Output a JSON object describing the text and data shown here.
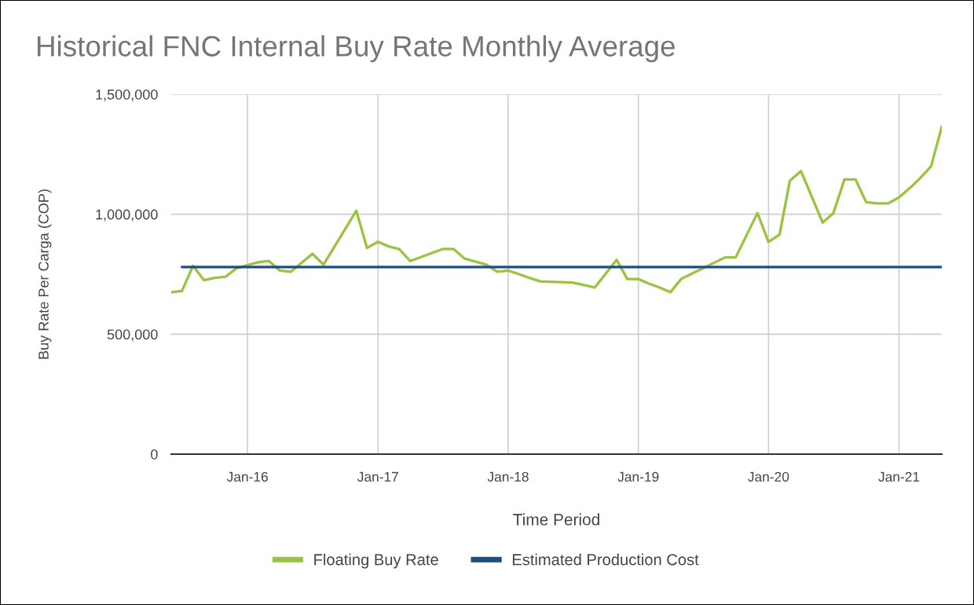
{
  "chart_data": {
    "type": "line",
    "title": "Historical FNC Internal Buy Rate Monthly Average",
    "xlabel": "Time Period",
    "ylabel": "Buy Rate Per Carga (COP)",
    "xlim": [
      "2015-06",
      "2021-05"
    ],
    "xticks": [
      {
        "value": "2016-01",
        "label": "Jan-16"
      },
      {
        "value": "2017-01",
        "label": "Jan-17"
      },
      {
        "value": "2018-01",
        "label": "Jan-18"
      },
      {
        "value": "2019-01",
        "label": "Jan-19"
      },
      {
        "value": "2020-01",
        "label": "Jan-20"
      },
      {
        "value": "2021-01",
        "label": "Jan-21"
      }
    ],
    "ylim": [
      0,
      1500000
    ],
    "yticks": [
      0,
      {
        "value": 500000,
        "label": "500,000"
      },
      {
        "value": 1000000,
        "label": "1,000,000"
      },
      {
        "value": 1500000,
        "label": "1,500,000"
      }
    ],
    "grid": true,
    "legend": "bottom",
    "series": [
      {
        "name": "Floating Buy Rate",
        "color": "#9ac43f",
        "x": [
          "2015-06",
          "2015-07",
          "2015-08",
          "2015-09",
          "2015-10",
          "2015-11",
          "2015-12",
          "2016-02",
          "2016-03",
          "2016-04",
          "2016-05",
          "2016-07",
          "2016-08",
          "2016-11",
          "2016-12",
          "2017-01",
          "2017-02",
          "2017-03",
          "2017-04",
          "2017-07",
          "2017-08",
          "2017-09",
          "2017-11",
          "2017-12",
          "2018-01",
          "2018-02",
          "2018-03",
          "2018-04",
          "2018-07",
          "2018-09",
          "2018-11",
          "2018-12",
          "2019-01",
          "2019-02",
          "2019-03",
          "2019-04",
          "2019-05",
          "2019-09",
          "2019-10",
          "2019-12",
          "2020-01",
          "2020-02",
          "2020-03",
          "2020-04",
          "2020-06",
          "2020-07",
          "2020-08",
          "2020-09",
          "2020-10",
          "2020-11",
          "2020-12",
          "2021-01",
          "2021-02",
          "2021-03",
          "2021-04",
          "2021-05"
        ],
        "values": [
          675000,
          680000,
          785000,
          725000,
          735000,
          740000,
          775000,
          800000,
          805000,
          765000,
          760000,
          835000,
          790000,
          1015000,
          860000,
          885000,
          865000,
          855000,
          805000,
          855000,
          855000,
          815000,
          790000,
          760000,
          765000,
          750000,
          735000,
          720000,
          715000,
          695000,
          810000,
          730000,
          730000,
          710000,
          695000,
          675000,
          730000,
          820000,
          820000,
          1005000,
          885000,
          915000,
          1140000,
          1180000,
          965000,
          1005000,
          1145000,
          1145000,
          1050000,
          1045000,
          1045000,
          1070000,
          1110000,
          1150000,
          1200000,
          1365000
        ]
      },
      {
        "name": "Estimated Production Cost",
        "color": "#1f4e79",
        "x": [
          "2015-07",
          "2021-05"
        ],
        "values": [
          780000,
          780000
        ]
      }
    ]
  }
}
